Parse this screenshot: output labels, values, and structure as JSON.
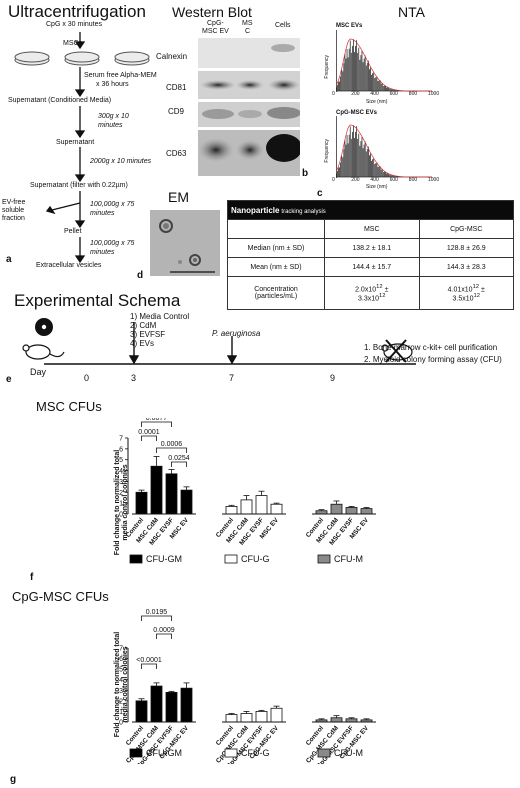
{
  "panelA": {
    "title": "Ultracentrifugation",
    "steps": {
      "cpg": "CpG x 30 minutes",
      "mscs": "MSCs",
      "serum": "Serum free Alpha-MEM",
      "serum2": "x 36 hours",
      "supernatant_cm": "Supernatant (Conditioned Media)",
      "spin1": "300g x 10",
      "spin1b": "minutes",
      "supernatant": "Supernatant",
      "spin2": "2000g x 10 minutes",
      "supernatant_filter": "Supernatant  (filter with 0.22µm)",
      "evfree1": "EV-free",
      "evfree2": "soluble",
      "evfree3": "fraction",
      "spin3": "100,000g x 75",
      "spin3b": "minutes",
      "pellet": "Pellet",
      "spin4": "100,000g x 75",
      "spin4b": "minutes",
      "ev": "Extracellular vesicles"
    },
    "letter": "a"
  },
  "panelB": {
    "title": "Western Blot",
    "columns": [
      "CpG-",
      "MSC EV",
      "MS",
      "C",
      "Cells"
    ],
    "rows": [
      "Calnexin",
      "CD81",
      "CD9",
      "CD63"
    ],
    "letter": "b"
  },
  "panelC": {
    "title": "NTA",
    "hist1_title": "MSC EVs",
    "hist2_title": "CpG-MSC EVs",
    "ylabel": "Frequency",
    "xlabel": "Size (nm)",
    "ticks": [
      "0",
      "200",
      "400",
      "600",
      "800",
      "1000"
    ],
    "letter": "c"
  },
  "panelD": {
    "title": "EM",
    "letter": "d",
    "table_title": "Nanoparticle",
    "table_title2": "tracking analysis",
    "col_msc": "MSC",
    "col_cpg": "CpG-MSC",
    "r1": "Median (nm ± SD)",
    "r1a": "138.2 ± 18.1",
    "r1b": "128.8 ± 26.9",
    "r2": "Mean (nm ± SD)",
    "r2a": "144.4 ± 15.7",
    "r2b": "144.3 ± 28.3",
    "r3": "Concentration",
    "r3l2": "(particles/mL)",
    "r3a": "2.0x10",
    "r3a_exp": "12",
    "r3a2": "±",
    "r3a3": "3.3x10",
    "r3a3_exp": "12",
    "r3b": "4.01x10",
    "r3b_exp": "12",
    "r3b2": "±",
    "r3b3": "3.5x10",
    "r3b3_exp": "12"
  },
  "panelE": {
    "title": "Experimental Schema",
    "day": "Day",
    "days": [
      "0",
      "3",
      "7",
      "9"
    ],
    "treat": [
      "1)  Media Control",
      "2)  CdM",
      "3)  EVFSF",
      "4)  EVs"
    ],
    "pathogen": "P. aeruginosa",
    "out1": "1.  Bone marrow c-kit+ cell purification",
    "out2": "2.  Myeloid colony forming assay (CFU)",
    "letter": "e"
  },
  "chart_data": [
    {
      "type": "bar",
      "title": "MSC CFUs",
      "ylabel": "Fold change to normalized total media control colonies",
      "ylim": [
        0,
        7
      ],
      "yticks": [
        "0",
        "1",
        "2",
        "3",
        "4",
        "5",
        "6",
        "7"
      ],
      "groups": [
        {
          "name": "CFU-GM",
          "categories": [
            "Control",
            "MSC CdM",
            "MSC EVSF",
            "MSC EV"
          ],
          "values": [
            2.0,
            4.4,
            3.7,
            2.2
          ],
          "errors": [
            0.2,
            0.9,
            0.4,
            0.3
          ]
        },
        {
          "name": "CFU-G",
          "categories": [
            "Control",
            "MSC CdM",
            "MSC EVSF",
            "MSC EV"
          ],
          "values": [
            0.7,
            1.3,
            1.7,
            0.9
          ],
          "errors": [
            0.1,
            0.4,
            0.4,
            0.1
          ]
        },
        {
          "name": "CFU-M",
          "categories": [
            "Control",
            "MSC CdM",
            "MSC EVSF",
            "MSC EV"
          ],
          "values": [
            0.3,
            0.9,
            0.6,
            0.5
          ],
          "errors": [
            0.1,
            0.3,
            0.1,
            0.1
          ]
        }
      ],
      "pvalues": [
        "0.0077",
        "0.0001",
        "0.0006",
        "0.0254"
      ],
      "legend": [
        "CFU-GM",
        "CFU-G",
        "CFU-M"
      ],
      "letter": "f"
    },
    {
      "type": "bar",
      "title": "CpG-MSC CFUs",
      "ylabel": "Fold change to normalized total media control colonies",
      "ylim": [
        0,
        7
      ],
      "yticks": [
        "0",
        "1",
        "2",
        "3",
        "4",
        "5",
        "6",
        "7"
      ],
      "groups": [
        {
          "name": "CFU-GM",
          "categories": [
            "Control",
            "CpG-MSC CdM",
            "CpG-MSC EVFSF",
            "CpG-MSC EV"
          ],
          "values": [
            2.0,
            3.4,
            2.8,
            3.2
          ],
          "errors": [
            0.2,
            0.3,
            0.1,
            0.5
          ]
        },
        {
          "name": "CFU-G",
          "categories": [
            "Control",
            "CpG-MSC CdM",
            "CpG-MSC EVFSF",
            "CpG-MSC EV"
          ],
          "values": [
            0.7,
            0.8,
            1.0,
            1.3
          ],
          "errors": [
            0.1,
            0.2,
            0.1,
            0.2
          ]
        },
        {
          "name": "CFU-M",
          "categories": [
            "Control",
            "CpG-MSC CdM",
            "CpG-MSC EVFSF",
            "CpG-MSC EV"
          ],
          "values": [
            0.2,
            0.4,
            0.3,
            0.2
          ],
          "errors": [
            0.1,
            0.2,
            0.1,
            0.1
          ]
        }
      ],
      "pvalues": [
        "0.0195",
        "0.0009",
        "<0.0001"
      ],
      "legend": [
        "CFU-GM",
        "CFU-G",
        "CFU-M"
      ],
      "letter": "g"
    }
  ],
  "colors": {
    "gm": "#000000",
    "g": "#ffffff",
    "m": "#8a8a8a",
    "hist": "#222222",
    "curve": "#d33333"
  }
}
